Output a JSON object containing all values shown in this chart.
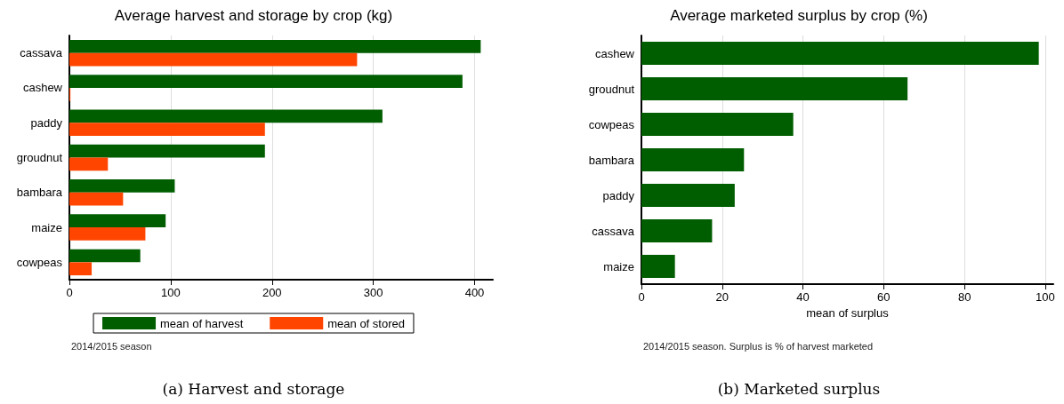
{
  "chart_data": [
    {
      "type": "bar",
      "orientation": "horizontal",
      "title": "Average harvest and storage by crop (kg)",
      "categories": [
        "cassava",
        "cashew",
        "paddy",
        "groudnut",
        "bambara",
        "maize",
        "cowpeas"
      ],
      "series": [
        {
          "name": "mean of harvest",
          "color": "#005e00",
          "values": [
            406,
            388,
            309,
            193,
            104,
            95,
            70
          ]
        },
        {
          "name": "mean of stored",
          "color": "#ff4500",
          "values": [
            284,
            1,
            193,
            38,
            53,
            75,
            22
          ]
        }
      ],
      "xlim": [
        0,
        418
      ],
      "xticks": [
        0,
        100,
        200,
        300,
        400
      ],
      "grid": "x",
      "legend": "bottom",
      "annotations": [
        "2014/2015 season",
        "(a) Harvest and storage"
      ]
    },
    {
      "type": "bar",
      "orientation": "horizontal",
      "title": "Average marketed surplus by crop (%)",
      "xlabel": "mean of surplus",
      "categories": [
        "cashew",
        "groudnut",
        "cowpeas",
        "bambara",
        "paddy",
        "cassava",
        "maize"
      ],
      "series": [
        {
          "color": "#005e00",
          "values": [
            98.4,
            65.9,
            37.6,
            25.4,
            23.1,
            17.5,
            8.3
          ]
        }
      ],
      "xlim": [
        0,
        102
      ],
      "xticks": [
        0,
        20,
        40,
        60,
        80,
        100
      ],
      "grid": "x",
      "annotations": [
        "2014/2015 season. Surplus is % of harvest marketed",
        "(b) Marketed surplus"
      ]
    }
  ]
}
